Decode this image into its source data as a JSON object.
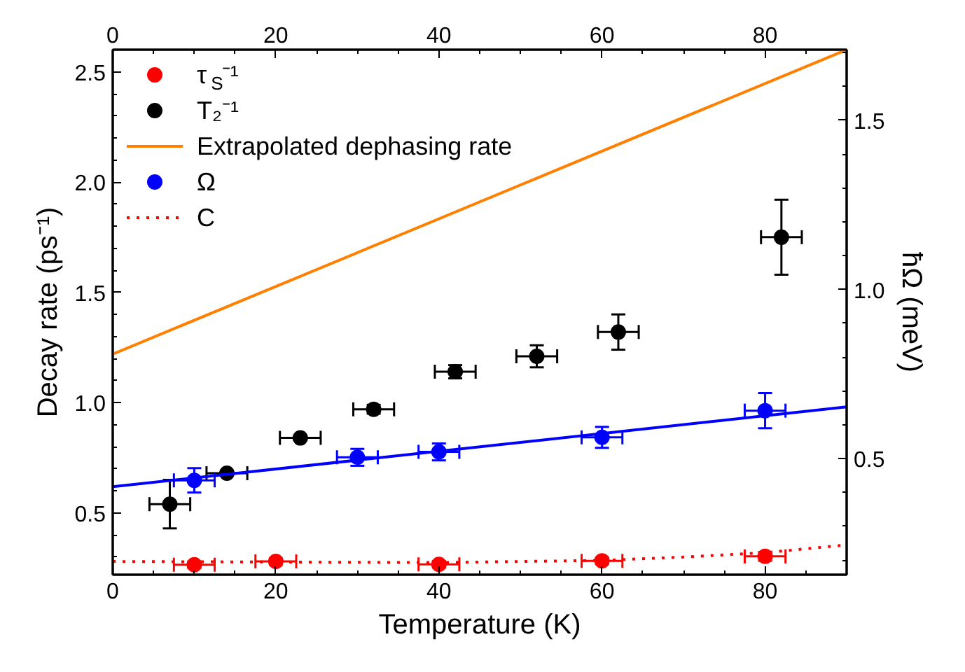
{
  "chart_data": {
    "type": "scatter",
    "xlabel": "Temperature (K)",
    "ylabel": "Decay rate (ps⁻¹)",
    "y2label": "ħΩ (meV)",
    "xlim": [
      0,
      90
    ],
    "xticks": [
      0,
      20,
      40,
      60,
      80
    ],
    "x2lim": [
      0,
      90
    ],
    "x2ticks": [
      0,
      20,
      40,
      60,
      80
    ],
    "ylim": [
      0.22,
      2.6
    ],
    "yticks": [
      {
        "value": 0.5,
        "label": "0.5"
      },
      {
        "value": 1,
        "label": "1.0"
      },
      {
        "value": 1.5,
        "label": "1.5"
      },
      {
        "value": 2,
        "label": "2.0"
      },
      {
        "value": 2.5,
        "label": "2.5"
      }
    ],
    "y2lim": [
      0.157,
      1.709
    ],
    "y2ticks": [
      {
        "value": 0.5,
        "label": "0.5"
      },
      {
        "value": 1,
        "label": "1.0"
      },
      {
        "value": 1.5,
        "label": "1.5"
      }
    ],
    "legend": "top left",
    "grid": false,
    "series": [
      {
        "name": "τ$_{S}$⁻¹",
        "marker": "circle",
        "color": "#ff0000",
        "x": [
          10,
          20,
          40,
          60,
          80
        ],
        "values": [
          0.265,
          0.28,
          0.267,
          0.283,
          0.303
        ],
        "errors": [
          0.015,
          0.015,
          0.015,
          0.015,
          0.02
        ],
        "xerrors": [
          2.5,
          2.5,
          2.5,
          2.5,
          2.5
        ]
      },
      {
        "name": "T₂⁻¹",
        "marker": "circle",
        "color": "#000000",
        "x": [
          7,
          14,
          23,
          32,
          42,
          52,
          62,
          82
        ],
        "values": [
          0.54,
          0.68,
          0.84,
          0.97,
          1.14,
          1.21,
          1.32,
          1.75
        ],
        "errors": [
          0.11,
          0.01,
          0.01,
          0.02,
          0.03,
          0.05,
          0.08,
          0.17
        ],
        "xerrors": [
          2.5,
          2.5,
          2.5,
          2.5,
          2.5,
          2.5,
          2.5,
          2.5
        ]
      },
      {
        "name": "Extrapolated dephasing rate",
        "type": "line",
        "color": "#ff8000",
        "line_style": "solid",
        "x": [
          0,
          90
        ],
        "values": [
          1.22,
          2.6
        ]
      },
      {
        "name": "Ω",
        "marker": "circle",
        "axis": "y2",
        "color": "#0000ff",
        "x": [
          10,
          30,
          40,
          60,
          80
        ],
        "values": [
          0.436,
          0.504,
          0.52,
          0.563,
          0.642
        ],
        "errors": [
          0.036,
          0.025,
          0.025,
          0.031,
          0.052
        ],
        "xerrors": [
          2.5,
          2.5,
          2.5,
          2.5,
          2.5
        ]
      },
      {
        "name": "C",
        "type": "line",
        "color": "#ff0000",
        "line_style": "dotted",
        "x": [
          0,
          40,
          60,
          70,
          80,
          90
        ],
        "values": [
          0.28,
          0.275,
          0.285,
          0.3,
          0.32,
          0.355
        ]
      },
      {
        "type": "line",
        "axis": "y2",
        "color": "#0000ff",
        "line_style": "solid",
        "x": [
          0,
          90
        ],
        "values": [
          0.417,
          0.653
        ]
      }
    ]
  }
}
